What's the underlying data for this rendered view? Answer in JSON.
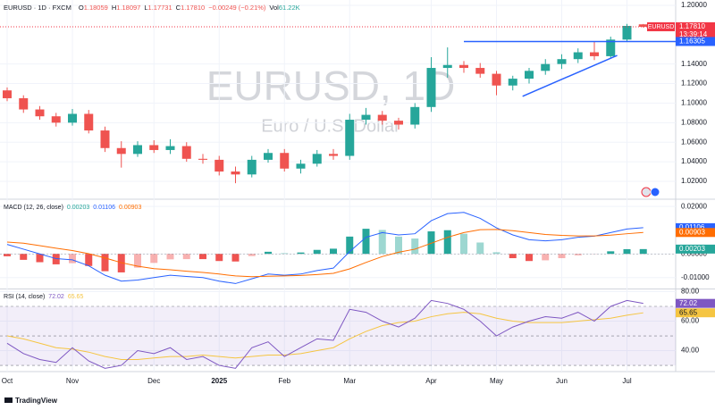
{
  "chart_data": {
    "type": "candlestick",
    "header": {
      "symbol": "EURUSD · 1D · FXCM",
      "ohlc": [
        {
          "label": "O",
          "value": "1.18059"
        },
        {
          "label": "H",
          "value": "1.18097"
        },
        {
          "label": "L",
          "value": "1.17731"
        },
        {
          "label": "C",
          "value": "1.17810"
        }
      ],
      "change": "−0.00249 (−0.21%)",
      "volume_label": "Vol",
      "volume": "61.22K"
    },
    "watermark": {
      "title": "EURUSD, 1D",
      "subtitle": "Euro / U.S. Dollar"
    },
    "price_tag": {
      "symbol": "EURUSD",
      "price": "1.17810",
      "countdown": "13:39:14",
      "color": "#f23645"
    },
    "categories": [
      "Oct",
      null,
      null,
      null,
      "Nov",
      null,
      null,
      null,
      null,
      "Dec",
      null,
      null,
      null,
      "2025",
      null,
      null,
      null,
      "Feb",
      null,
      null,
      null,
      "Mar",
      null,
      null,
      null,
      null,
      "Apr",
      null,
      null,
      null,
      "May",
      null,
      null,
      null,
      "Jun",
      null,
      null,
      null,
      "Jul",
      null
    ],
    "open": [
      1.113,
      1.105,
      1.0935,
      1.0865,
      1.08,
      1.089,
      1.072,
      1.054,
      1.048,
      1.057,
      1.052,
      1.056,
      1.043,
      1.042,
      1.03,
      1.027,
      1.042,
      1.049,
      1.033,
      1.038,
      1.048,
      1.046,
      1.083,
      1.088,
      1.082,
      1.078,
      1.096,
      1.136,
      1.139,
      1.136,
      1.13,
      1.118,
      1.125,
      1.133,
      1.14,
      1.145,
      1.152,
      1.148,
      1.165,
      1.18059
    ],
    "high": [
      1.116,
      1.108,
      1.097,
      1.09,
      1.094,
      1.093,
      1.076,
      1.061,
      1.061,
      1.062,
      1.063,
      1.06,
      1.048,
      1.046,
      1.035,
      1.046,
      1.053,
      1.053,
      1.042,
      1.052,
      1.053,
      1.089,
      1.095,
      1.092,
      1.085,
      1.1,
      1.147,
      1.157,
      1.143,
      1.141,
      1.133,
      1.128,
      1.136,
      1.145,
      1.15,
      1.156,
      1.163,
      1.168,
      1.181,
      1.18097
    ],
    "low": [
      1.102,
      1.09,
      1.083,
      1.076,
      1.077,
      1.069,
      1.05,
      1.034,
      1.045,
      1.049,
      1.048,
      1.04,
      1.038,
      1.026,
      1.018,
      1.024,
      1.039,
      1.03,
      1.028,
      1.035,
      1.042,
      1.042,
      1.078,
      1.078,
      1.073,
      1.074,
      1.091,
      1.126,
      1.131,
      1.126,
      1.108,
      1.113,
      1.12,
      1.129,
      1.135,
      1.141,
      1.144,
      1.146,
      1.163,
      1.17731
    ],
    "close": [
      1.105,
      1.0935,
      1.0865,
      1.08,
      1.089,
      1.072,
      1.054,
      1.048,
      1.057,
      1.052,
      1.056,
      1.043,
      1.042,
      1.03,
      1.027,
      1.042,
      1.049,
      1.033,
      1.038,
      1.048,
      1.046,
      1.083,
      1.088,
      1.082,
      1.078,
      1.096,
      1.136,
      1.139,
      1.136,
      1.13,
      1.118,
      1.125,
      1.133,
      1.14,
      1.145,
      1.152,
      1.148,
      1.165,
      1.179,
      1.1781
    ],
    "up_color": "#26a69a",
    "down_color": "#ef5350",
    "ylim": [
      1.0026,
      1.2055
    ],
    "yticks": [
      {
        "value": 1.2,
        "label": "1.20000"
      },
      {
        "value": 1.14,
        "label": "1.14000"
      },
      {
        "value": 1.12,
        "label": "1.12000"
      },
      {
        "value": 1.1,
        "label": "1.10000"
      },
      {
        "value": 1.08,
        "label": "1.08000"
      },
      {
        "value": 1.06,
        "label": "1.06000"
      },
      {
        "value": 1.04,
        "label": "1.04000"
      },
      {
        "value": 1.02,
        "label": "1.02000"
      }
    ],
    "grid": true,
    "drawings": {
      "horizontal": {
        "price": 1.16305,
        "start": 28,
        "color": "#2962ff"
      },
      "trendline": {
        "points": [
          {
            "index": 31.6,
            "price": 1.107
          },
          {
            "index": 37.4,
            "price": 1.1488
          }
        ],
        "color": "#2962ff"
      }
    },
    "macd": {
      "title": "MACD (12, 26, close)",
      "ylim": [
        -0.0146,
        0.0227
      ],
      "yticks": [
        {
          "value": 0.02,
          "label": "0.02000"
        },
        {
          "value": 0,
          "label": "0.00000"
        },
        {
          "value": -0.01,
          "label": "-0.01000"
        }
      ],
      "series": [
        {
          "name": "histogram",
          "color": "#26a69a",
          "negative_color": "#ef5350",
          "values": [
            -0.001,
            -0.0025,
            -0.0035,
            -0.0044,
            -0.0039,
            -0.0051,
            -0.0073,
            -0.0078,
            -0.0058,
            -0.0038,
            -0.0023,
            -0.0022,
            -0.0022,
            -0.003,
            -0.0032,
            -0.0009,
            0.0009,
            0.0003,
            0.0006,
            0.0017,
            0.0022,
            0.0073,
            0.0106,
            0.0101,
            0.0073,
            0.0065,
            0.0095,
            0.01,
            0.0085,
            0.0048,
            0.0007,
            -0.0018,
            -0.003,
            -0.0027,
            -0.0018,
            -0.0006,
            -0.0001,
            0.0011,
            0.002,
            0.00203
          ]
        },
        {
          "name": "macd",
          "color": "#2962ff",
          "values": [
            0.004,
            0.002,
            0.0,
            -0.002,
            -0.0025,
            -0.005,
            -0.009,
            -0.0115,
            -0.011,
            -0.01,
            -0.009,
            -0.0095,
            -0.01,
            -0.0115,
            -0.0125,
            -0.0105,
            -0.0085,
            -0.009,
            -0.0085,
            -0.007,
            -0.006,
            0.001,
            0.007,
            0.009,
            0.008,
            0.0085,
            0.014,
            0.017,
            0.0175,
            0.015,
            0.011,
            0.008,
            0.006,
            0.0055,
            0.006,
            0.007,
            0.0075,
            0.009,
            0.0105,
            0.01106
          ]
        },
        {
          "name": "signal",
          "color": "#ff6d00",
          "values": [
            0.005,
            0.0045,
            0.0035,
            0.0024,
            0.0014,
            0.0001,
            -0.0017,
            -0.0037,
            -0.0052,
            -0.0062,
            -0.0067,
            -0.0073,
            -0.0078,
            -0.0085,
            -0.0093,
            -0.0096,
            -0.0094,
            -0.0093,
            -0.0091,
            -0.0087,
            -0.0082,
            -0.0063,
            -0.0036,
            -0.0011,
            0.0007,
            0.002,
            0.0045,
            0.007,
            0.009,
            0.0102,
            0.0103,
            0.0098,
            0.009,
            0.0082,
            0.0078,
            0.0076,
            0.0076,
            0.0079,
            0.0085,
            0.00903
          ]
        }
      ]
    },
    "rsi": {
      "title": "RSI (14, close)",
      "ylim": [
        25.8,
        81.2
      ],
      "yticks": [
        {
          "value": 80,
          "label": "80.00"
        },
        {
          "value": 60,
          "label": "60.00"
        },
        {
          "value": 40,
          "label": "40.00"
        }
      ],
      "band": [
        30,
        70
      ],
      "levels": [
        70,
        50,
        30
      ],
      "series": [
        {
          "name": "rsi",
          "color": "#7e57c2",
          "values": [
            45,
            38,
            34,
            32,
            42,
            33,
            28,
            30,
            40,
            38,
            42,
            34,
            36,
            30,
            28,
            42,
            46,
            36,
            42,
            48,
            47,
            68,
            66,
            60,
            56,
            62,
            74,
            72,
            68,
            60,
            50,
            56,
            60,
            63,
            62,
            66,
            60,
            70,
            74,
            72.02
          ]
        },
        {
          "name": "rsi-ma",
          "color": "#f5c542",
          "values": [
            50,
            48,
            45,
            42,
            41,
            39,
            36,
            34,
            34,
            35,
            36,
            36,
            37,
            36,
            35,
            36,
            37,
            37,
            38,
            40,
            42,
            48,
            53,
            57,
            59,
            60,
            63,
            65,
            66,
            65,
            62,
            60,
            59,
            59,
            59,
            60,
            61,
            62,
            64,
            65.65
          ]
        }
      ]
    },
    "logo": "TradingView"
  }
}
